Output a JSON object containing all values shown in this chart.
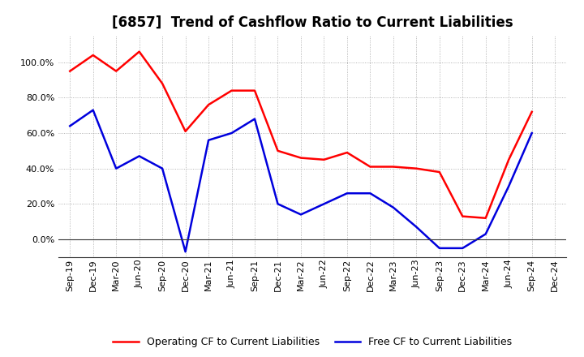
{
  "title": "[6857]  Trend of Cashflow Ratio to Current Liabilities",
  "x_labels": [
    "Sep-19",
    "Dec-19",
    "Mar-20",
    "Jun-20",
    "Sep-20",
    "Dec-20",
    "Mar-21",
    "Jun-21",
    "Sep-21",
    "Dec-21",
    "Mar-22",
    "Jun-22",
    "Sep-22",
    "Dec-22",
    "Mar-23",
    "Jun-23",
    "Sep-23",
    "Dec-23",
    "Mar-24",
    "Jun-24",
    "Sep-24",
    "Dec-24"
  ],
  "operating_cf": [
    0.95,
    1.04,
    0.95,
    1.06,
    0.88,
    0.61,
    0.76,
    0.84,
    0.84,
    0.5,
    0.46,
    0.45,
    0.49,
    0.41,
    0.41,
    0.4,
    0.38,
    0.13,
    0.12,
    0.45,
    0.72,
    null
  ],
  "free_cf": [
    0.64,
    0.73,
    0.4,
    0.47,
    0.4,
    -0.07,
    0.56,
    0.6,
    0.68,
    0.2,
    0.14,
    0.2,
    0.26,
    0.26,
    0.18,
    0.07,
    -0.05,
    -0.05,
    0.03,
    0.3,
    0.6,
    null
  ],
  "operating_color": "#FF0000",
  "free_color": "#0000DD",
  "ylim": [
    -0.1,
    1.15
  ],
  "yticks": [
    0.0,
    0.2,
    0.4,
    0.6,
    0.8,
    1.0
  ],
  "background_color": "#FFFFFF",
  "plot_bg_color": "#FFFFFF",
  "grid_color": "#999999",
  "legend_operating": "Operating CF to Current Liabilities",
  "legend_free": "Free CF to Current Liabilities",
  "title_fontsize": 12,
  "tick_fontsize": 8,
  "legend_fontsize": 9,
  "linewidth": 1.8
}
